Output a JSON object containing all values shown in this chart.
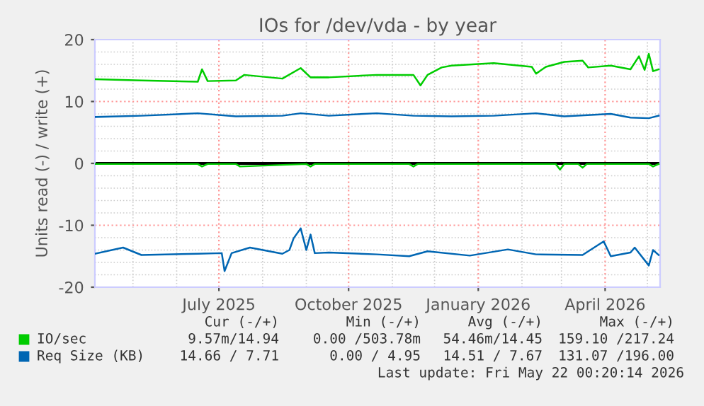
{
  "chart_data": {
    "type": "line",
    "title": "IOs for /dev/vda - by year",
    "ylabel": "Units read (-) / write (+)",
    "xlim": [
      "2025-04-04",
      "2026-05-10"
    ],
    "xticks": [
      {
        "value": "2025-07-01",
        "label": "July 2025"
      },
      {
        "value": "2025-10-01",
        "label": "October 2025"
      },
      {
        "value": "2026-01-01",
        "label": "January 2026"
      },
      {
        "value": "2026-04-01",
        "label": "April 2026"
      }
    ],
    "ylim": [
      -20,
      20
    ],
    "yticks": [
      -20,
      -10,
      0,
      10,
      20
    ],
    "grid": true,
    "legend": "bottom",
    "ref_lines": [
      {
        "axis": "y",
        "value": 0,
        "color": "#000000"
      }
    ],
    "series": [
      {
        "name": "IO/sec",
        "color": "#00cc00",
        "x": [
          "2025-04-04",
          "2025-05-07",
          "2025-06-16",
          "2025-06-19",
          "2025-06-23",
          "2025-07-13",
          "2025-07-19",
          "2025-08-15",
          "2025-08-28",
          "2025-09-04",
          "2025-09-17",
          "2025-10-21",
          "2025-11-16",
          "2025-11-21",
          "2025-11-26",
          "2025-12-06",
          "2025-12-13",
          "2026-01-12",
          "2026-02-08",
          "2026-02-11",
          "2026-02-18",
          "2026-03-03",
          "2026-03-16",
          "2026-03-20",
          "2026-04-05",
          "2026-04-19",
          "2026-04-25",
          "2026-04-29",
          "2026-05-02",
          "2026-05-05",
          "2026-05-09"
        ],
        "values": [
          13.6,
          13.4,
          13.2,
          15.2,
          13.3,
          13.4,
          14.3,
          13.7,
          15.4,
          13.9,
          13.9,
          14.3,
          14.3,
          12.6,
          14.3,
          15.5,
          15.8,
          16.2,
          15.6,
          14.5,
          15.6,
          16.4,
          16.6,
          15.5,
          15.8,
          15.2,
          17.3,
          15.1,
          17.7,
          14.9,
          15.2
        ]
      },
      {
        "color": "#00cc00",
        "x": [
          "2025-04-04",
          "2025-06-16",
          "2025-06-19",
          "2025-06-23",
          "2025-07-13",
          "2025-07-16",
          "2025-09-01",
          "2025-09-04",
          "2025-09-07",
          "2025-11-13",
          "2025-11-16",
          "2025-11-19",
          "2026-02-25",
          "2026-02-28",
          "2026-03-03",
          "2026-03-13",
          "2026-03-16",
          "2026-03-19",
          "2026-05-02",
          "2026-05-05",
          "2026-05-09"
        ],
        "values": [
          -0.1,
          -0.1,
          -0.5,
          -0.1,
          -0.1,
          -0.5,
          -0.1,
          -0.5,
          -0.1,
          -0.1,
          -0.5,
          -0.1,
          -0.1,
          -1.0,
          -0.1,
          -0.1,
          -0.7,
          -0.1,
          -0.1,
          -0.5,
          -0.1
        ]
      },
      {
        "name": "Req Size (KB)",
        "color": "#0066b3",
        "x": [
          "2025-04-04",
          "2025-05-07",
          "2025-06-16",
          "2025-07-13",
          "2025-08-15",
          "2025-08-28",
          "2025-09-17",
          "2025-10-21",
          "2025-11-16",
          "2025-12-13",
          "2026-01-12",
          "2026-02-11",
          "2026-03-03",
          "2026-04-05",
          "2026-04-19",
          "2026-05-02",
          "2026-05-09"
        ],
        "values": [
          7.5,
          7.7,
          8.1,
          7.6,
          7.7,
          8.1,
          7.7,
          8.1,
          7.7,
          7.6,
          7.7,
          8.1,
          7.6,
          8.0,
          7.4,
          7.3,
          7.7
        ]
      },
      {
        "color": "#0066b3",
        "x": [
          "2025-04-04",
          "2025-04-24",
          "2025-05-07",
          "2025-06-16",
          "2025-07-03",
          "2025-07-05",
          "2025-07-10",
          "2025-07-23",
          "2025-08-15",
          "2025-08-20",
          "2025-08-23",
          "2025-08-28",
          "2025-09-01",
          "2025-09-04",
          "2025-09-07",
          "2025-09-17",
          "2025-10-21",
          "2025-11-13",
          "2025-11-26",
          "2025-12-26",
          "2026-01-22",
          "2026-02-11",
          "2026-03-16",
          "2026-03-31",
          "2026-04-05",
          "2026-04-19",
          "2026-04-22",
          "2026-05-02",
          "2026-05-05",
          "2026-05-09"
        ],
        "values": [
          -14.6,
          -13.6,
          -14.8,
          -14.6,
          -14.5,
          -17.4,
          -14.5,
          -13.6,
          -14.6,
          -14.0,
          -12.1,
          -10.5,
          -14.0,
          -11.5,
          -14.5,
          -14.4,
          -14.7,
          -15.0,
          -14.2,
          -14.9,
          -13.9,
          -14.7,
          -14.8,
          -12.6,
          -15.0,
          -14.4,
          -13.6,
          -16.5,
          -14.0,
          -14.8
        ]
      }
    ],
    "annotations": [
      "Cur (-/+)",
      "Min (-/+)",
      "Avg (-/+)",
      "Max (-/+)",
      "9.57m/14.94",
      "0.00 /503.78m",
      "54.46m/14.45",
      "159.10 /217.24",
      "14.66 / 7.71",
      "0.00 / 4.95",
      "14.51 / 7.67",
      "131.07 /196.00",
      "Last update: Fri May 22 00:20:14 2026"
    ]
  }
}
